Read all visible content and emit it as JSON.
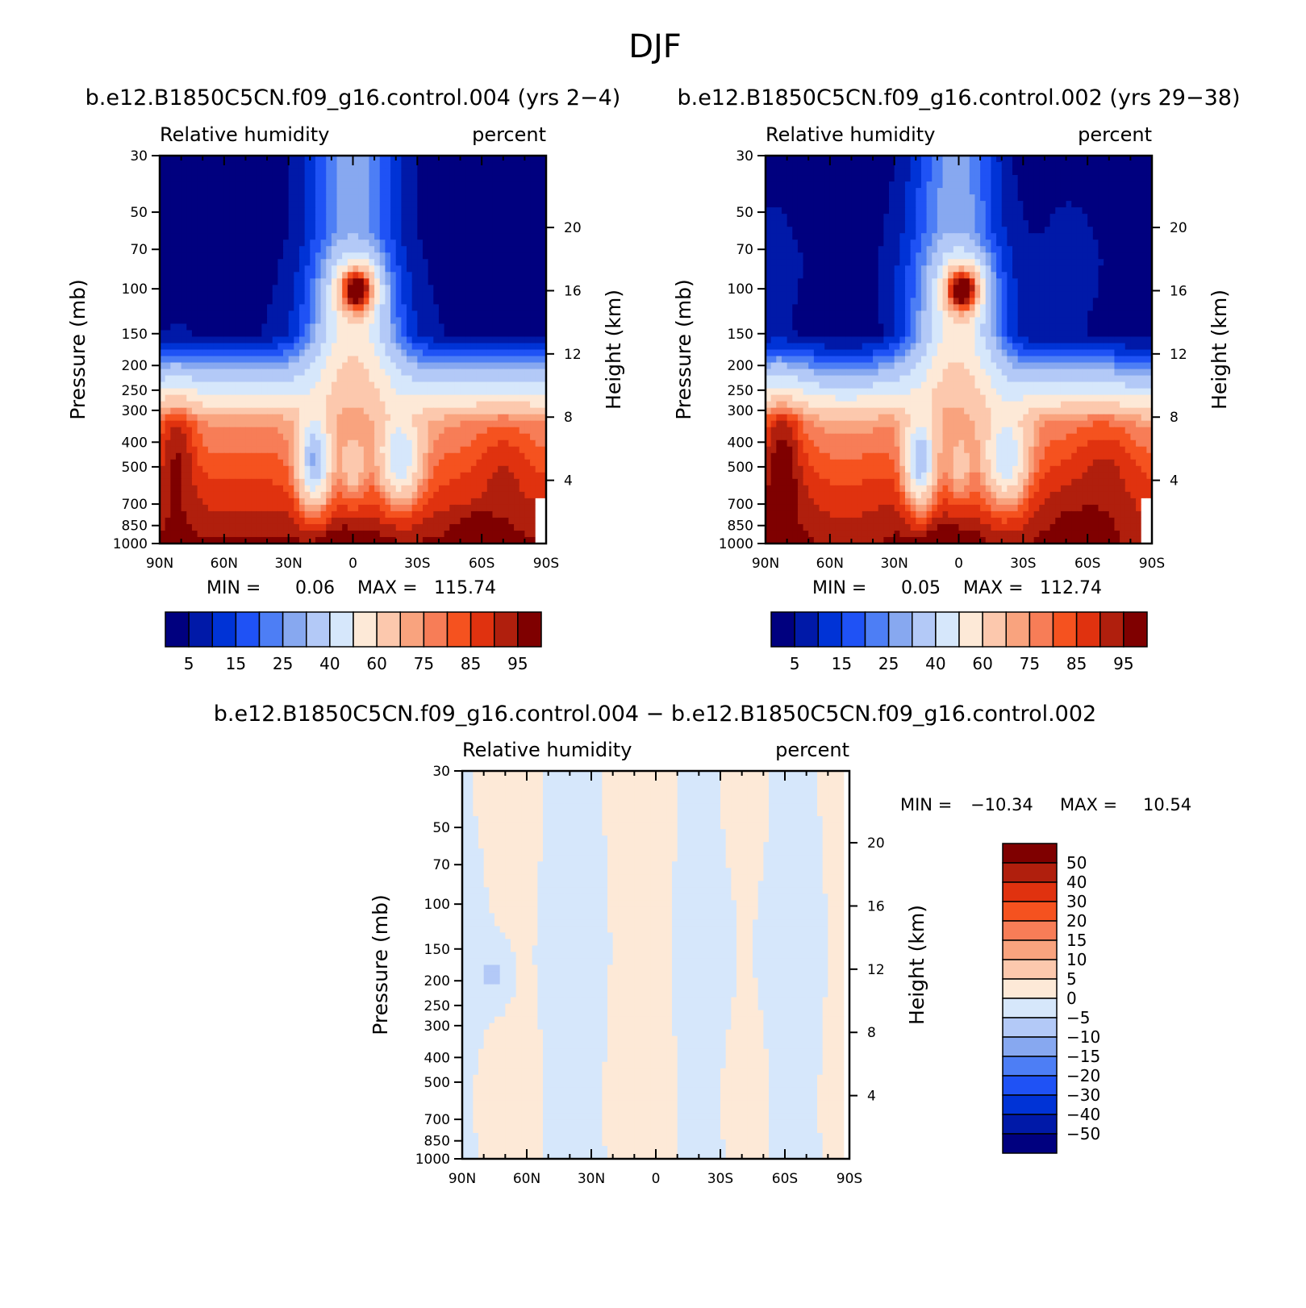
{
  "figure": {
    "title": "DJF"
  },
  "chart_data": [
    {
      "id": "panel1",
      "type": "contour",
      "title": "b.e12.B1850C5CN.f09_g16.control.004 (yrs 2-4)",
      "title_display": "b.e12.B1850C5CN.f09_g16.control.004 (yrs 2−4)",
      "left_label": "Relative humidity",
      "right_label": "percent",
      "ylabel": "Pressure (mb)",
      "ylabel_right": "Height (km)",
      "x_ticks": [
        "90N",
        "60N",
        "30N",
        "0",
        "30S",
        "60S",
        "90S"
      ],
      "x_range": [
        90,
        -90
      ],
      "p_levels": [
        30,
        50,
        70,
        100,
        150,
        200,
        250,
        300,
        400,
        500,
        700,
        850,
        1000
      ],
      "p_tick_labels": [
        "30",
        "50",
        "70",
        "100",
        "150",
        "200",
        "250",
        "300",
        "400",
        "500",
        "700",
        "850",
        "1000"
      ],
      "height_ticks": [
        "20",
        "16",
        "12",
        "8",
        "4"
      ],
      "min_label": "MIN =",
      "min_value": "0.06",
      "max_label": "MAX =",
      "max_value": "115.74",
      "levels": [
        5,
        10,
        15,
        20,
        25,
        30,
        40,
        50,
        60,
        70,
        75,
        80,
        85,
        90,
        95
      ],
      "colorbar_labels": [
        "5",
        "15",
        "25",
        "40",
        "60",
        "75",
        "85",
        "95"
      ]
    },
    {
      "id": "panel2",
      "type": "contour",
      "title": "b.e12.B1850C5CN.f09_g16.control.002 (yrs 29-38)",
      "title_display": "b.e12.B1850C5CN.f09_g16.control.002 (yrs 29−38)",
      "left_label": "Relative humidity",
      "right_label": "percent",
      "ylabel": "Pressure (mb)",
      "ylabel_right": "Height (km)",
      "x_ticks": [
        "90N",
        "60N",
        "30N",
        "0",
        "30S",
        "60S",
        "90S"
      ],
      "x_range": [
        90,
        -90
      ],
      "p_levels": [
        30,
        50,
        70,
        100,
        150,
        200,
        250,
        300,
        400,
        500,
        700,
        850,
        1000
      ],
      "p_tick_labels": [
        "30",
        "50",
        "70",
        "100",
        "150",
        "200",
        "250",
        "300",
        "400",
        "500",
        "700",
        "850",
        "1000"
      ],
      "height_ticks": [
        "20",
        "16",
        "12",
        "8",
        "4"
      ],
      "min_label": "MIN =",
      "min_value": "0.05",
      "max_label": "MAX =",
      "max_value": "112.74",
      "levels": [
        5,
        10,
        15,
        20,
        25,
        30,
        40,
        50,
        60,
        70,
        75,
        80,
        85,
        90,
        95
      ],
      "colorbar_labels": [
        "5",
        "15",
        "25",
        "40",
        "60",
        "75",
        "85",
        "95"
      ]
    },
    {
      "id": "panel3",
      "type": "contour",
      "title": "b.e12.B1850C5CN.f09_g16.control.004 - b.e12.B1850C5CN.f09_g16.control.002",
      "title_display": "b.e12.B1850C5CN.f09_g16.control.004 − b.e12.B1850C5CN.f09_g16.control.002",
      "left_label": "Relative humidity",
      "right_label": "percent",
      "ylabel": "Pressure (mb)",
      "ylabel_right": "Height (km)",
      "x_ticks": [
        "90N",
        "60N",
        "30N",
        "0",
        "30S",
        "60S",
        "90S"
      ],
      "x_range": [
        90,
        -90
      ],
      "p_levels": [
        30,
        50,
        70,
        100,
        150,
        200,
        250,
        300,
        400,
        500,
        700,
        850,
        1000
      ],
      "p_tick_labels": [
        "30",
        "50",
        "70",
        "100",
        "150",
        "200",
        "250",
        "300",
        "400",
        "500",
        "700",
        "850",
        "1000"
      ],
      "height_ticks": [
        "20",
        "16",
        "12",
        "8",
        "4"
      ],
      "min_label": "MIN =",
      "min_value": "−10.34",
      "max_label": "MAX =",
      "max_value": "10.54",
      "levels": [
        -50,
        -40,
        -30,
        -20,
        -15,
        -10,
        -5,
        0,
        5,
        10,
        15,
        20,
        30,
        40,
        50
      ],
      "colorbar_labels": [
        "50",
        "40",
        "30",
        "20",
        "15",
        "10",
        "5",
        "0",
        "−5",
        "−10",
        "−15",
        "−20",
        "−30",
        "−40",
        "−50"
      ]
    }
  ],
  "colors": {
    "scale": [
      "#00007f",
      "#0019a8",
      "#0033d6",
      "#1f52f5",
      "#4d7ef5",
      "#87a8f0",
      "#b3c9f7",
      "#d6e7fb",
      "#fde9d7",
      "#fcc8ad",
      "#f9a37e",
      "#f77d57",
      "#f5521f",
      "#e0320f",
      "#b01f0d",
      "#7f0000"
    ],
    "line": "#000000"
  }
}
